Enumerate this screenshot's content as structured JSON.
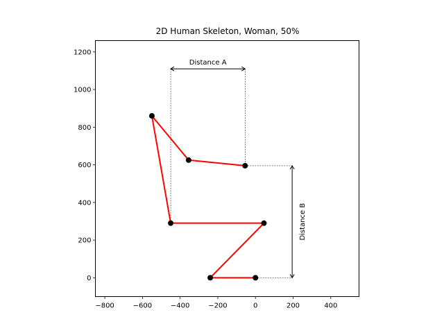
{
  "chart_data": {
    "type": "line",
    "title": "2D Human Skeleton, Woman, 50%",
    "xlabel": "",
    "ylabel": "",
    "xlim": [
      -850,
      550
    ],
    "ylim": [
      -100,
      1260
    ],
    "xticks": [
      -800,
      -600,
      -400,
      -200,
      0,
      200,
      400
    ],
    "yticks": [
      0,
      200,
      400,
      600,
      800,
      1000,
      1200
    ],
    "grid": false,
    "series": [
      {
        "color": "#ff0000",
        "marker_color": "#000000",
        "points": [
          {
            "x": 0,
            "y": 0
          },
          {
            "x": -240,
            "y": 0
          },
          {
            "x": 45,
            "y": 290
          },
          {
            "x": -450,
            "y": 290
          },
          {
            "x": -550,
            "y": 860
          },
          {
            "x": -355,
            "y": 625
          },
          {
            "x": -55,
            "y": 595
          }
        ]
      }
    ],
    "annotations": [
      {
        "label": "Distance A",
        "orientation": "horizontal",
        "x1": -450,
        "x2": -55,
        "y": 1110
      },
      {
        "label": "Distance B",
        "orientation": "vertical",
        "x": 195,
        "y1": 0,
        "y2": 595
      }
    ]
  }
}
